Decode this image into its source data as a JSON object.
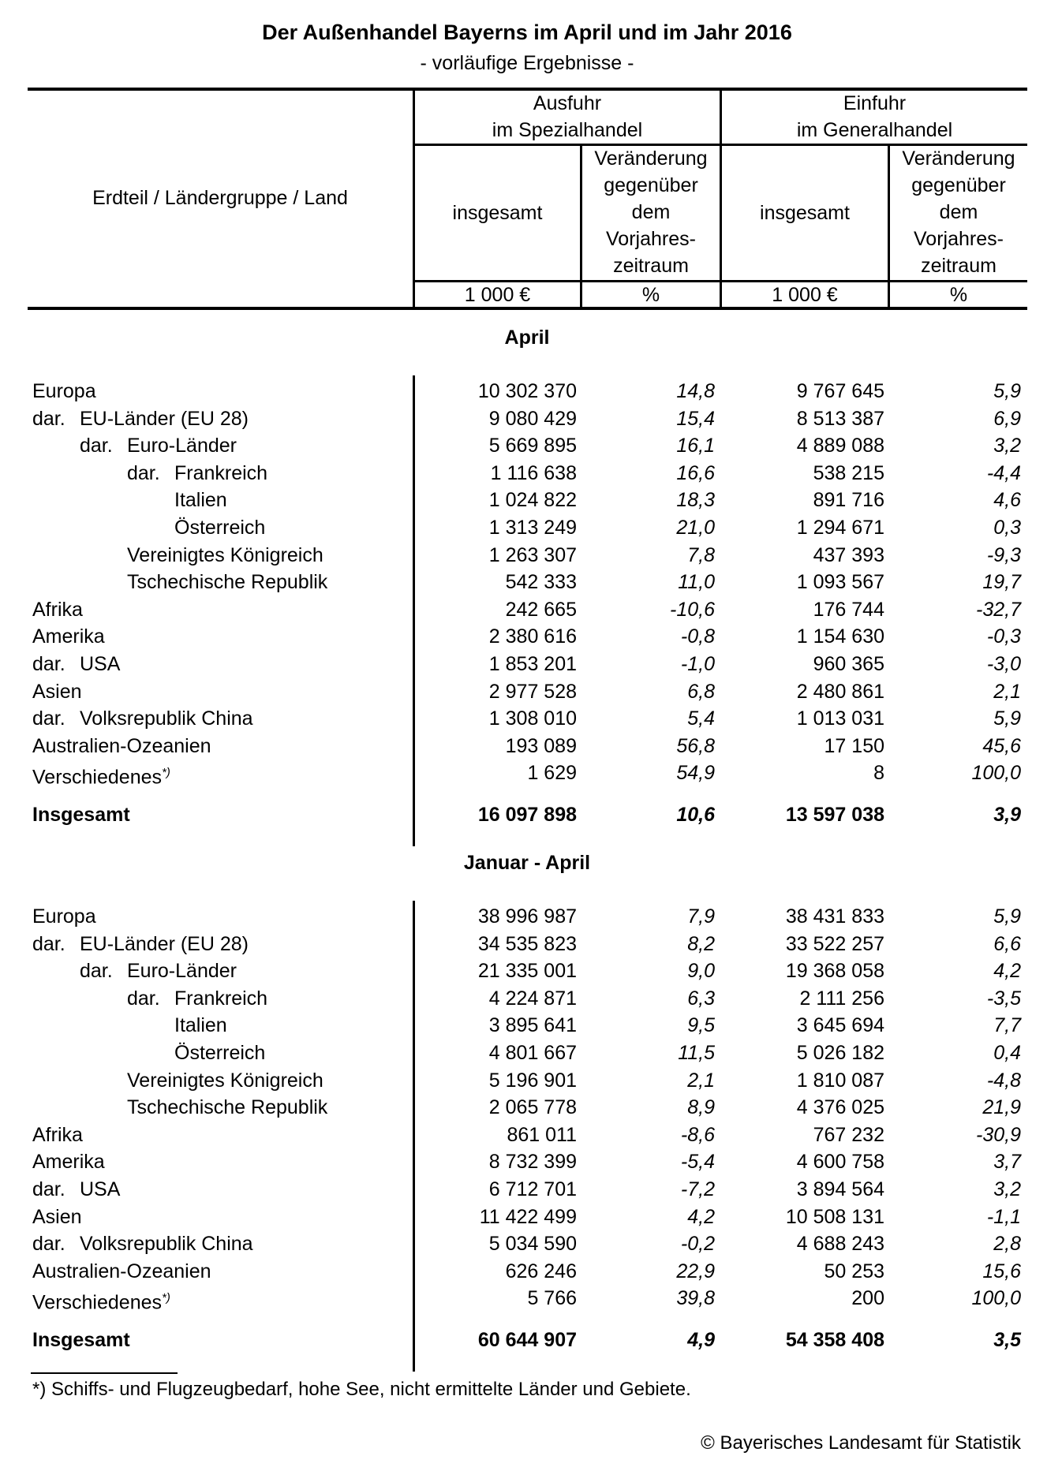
{
  "title": "Der Außenhandel Bayerns im April und im Jahr 2016",
  "subtitle": "- vorläufige Ergebnisse -",
  "header": {
    "stub": "Erdteil / Ländergruppe / Land",
    "export_group": [
      "Ausfuhr",
      "im Spezialhandel"
    ],
    "import_group": [
      "Einfuhr",
      "im Generalhandel"
    ],
    "total_label": "insgesamt",
    "change_label": [
      "Veränderung",
      "gegenüber",
      "dem",
      "Vorjahres-",
      "zeitraum"
    ],
    "unit_value": "1 000 €",
    "unit_pct": "%"
  },
  "sections": [
    {
      "title": "April",
      "rows": [
        {
          "prefix": "",
          "label": "Europa",
          "level": 0,
          "export": "10 302 370",
          "export_pct": "14,8",
          "import": "9 767 645",
          "import_pct": "5,9"
        },
        {
          "prefix": "dar.",
          "label": "EU-Länder (EU 28)",
          "level": 1,
          "export": "9 080 429",
          "export_pct": "15,4",
          "import": "8 513 387",
          "import_pct": "6,9"
        },
        {
          "prefix": "dar.",
          "label": "Euro-Länder",
          "level": 2,
          "export": "5 669 895",
          "export_pct": "16,1",
          "import": "4 889 088",
          "import_pct": "3,2"
        },
        {
          "prefix": "dar.",
          "label": "Frankreich",
          "level": 3,
          "export": "1 116 638",
          "export_pct": "16,6",
          "import": "538 215",
          "import_pct": "-4,4"
        },
        {
          "prefix": "",
          "label": "Italien",
          "level": 3,
          "export": "1 024 822",
          "export_pct": "18,3",
          "import": "891 716",
          "import_pct": "4,6"
        },
        {
          "prefix": "",
          "label": "Österreich",
          "level": 3,
          "export": "1 313 249",
          "export_pct": "21,0",
          "import": "1 294 671",
          "import_pct": "0,3"
        },
        {
          "prefix": "",
          "label": "Vereinigtes Königreich",
          "level": 2,
          "export": "1 263 307",
          "export_pct": "7,8",
          "import": "437 393",
          "import_pct": "-9,3"
        },
        {
          "prefix": "",
          "label": "Tschechische Republik",
          "level": 2,
          "export": "542 333",
          "export_pct": "11,0",
          "import": "1 093 567",
          "import_pct": "19,7"
        },
        {
          "prefix": "",
          "label": "Afrika",
          "level": 0,
          "export": "242 665",
          "export_pct": "-10,6",
          "import": "176 744",
          "import_pct": "-32,7"
        },
        {
          "prefix": "",
          "label": "Amerika",
          "level": 0,
          "export": "2 380 616",
          "export_pct": "-0,8",
          "import": "1 154 630",
          "import_pct": "-0,3"
        },
        {
          "prefix": "dar.",
          "label": "USA",
          "level": 1,
          "export": "1 853 201",
          "export_pct": "-1,0",
          "import": "960 365",
          "import_pct": "-3,0"
        },
        {
          "prefix": "",
          "label": "Asien",
          "level": 0,
          "export": "2 977 528",
          "export_pct": "6,8",
          "import": "2 480 861",
          "import_pct": "2,1"
        },
        {
          "prefix": "dar.",
          "label": "Volksrepublik China",
          "level": 1,
          "export": "1 308 010",
          "export_pct": "5,4",
          "import": "1 013 031",
          "import_pct": "5,9"
        },
        {
          "prefix": "",
          "label": "Australien-Ozeanien",
          "level": 0,
          "export": "193 089",
          "export_pct": "56,8",
          "import": "17 150",
          "import_pct": "45,6"
        },
        {
          "prefix": "",
          "label": "Verschiedenes",
          "note": "*)",
          "level": 0,
          "export": "1 629",
          "export_pct": "54,9",
          "import": "8",
          "import_pct": "100,0"
        }
      ],
      "total": {
        "label": "Insgesamt",
        "export": "16 097 898",
        "export_pct": "10,6",
        "import": "13 597 038",
        "import_pct": "3,9"
      }
    },
    {
      "title": "Januar - April",
      "rows": [
        {
          "prefix": "",
          "label": "Europa",
          "level": 0,
          "export": "38 996 987",
          "export_pct": "7,9",
          "import": "38 431 833",
          "import_pct": "5,9"
        },
        {
          "prefix": "dar.",
          "label": "EU-Länder (EU 28)",
          "level": 1,
          "export": "34 535 823",
          "export_pct": "8,2",
          "import": "33 522 257",
          "import_pct": "6,6"
        },
        {
          "prefix": "dar.",
          "label": "Euro-Länder",
          "level": 2,
          "export": "21 335 001",
          "export_pct": "9,0",
          "import": "19 368 058",
          "import_pct": "4,2"
        },
        {
          "prefix": "dar.",
          "label": "Frankreich",
          "level": 3,
          "export": "4 224 871",
          "export_pct": "6,3",
          "import": "2 111 256",
          "import_pct": "-3,5"
        },
        {
          "prefix": "",
          "label": "Italien",
          "level": 3,
          "export": "3 895 641",
          "export_pct": "9,5",
          "import": "3 645 694",
          "import_pct": "7,7"
        },
        {
          "prefix": "",
          "label": "Österreich",
          "level": 3,
          "export": "4 801 667",
          "export_pct": "11,5",
          "import": "5 026 182",
          "import_pct": "0,4"
        },
        {
          "prefix": "",
          "label": "Vereinigtes Königreich",
          "level": 2,
          "export": "5 196 901",
          "export_pct": "2,1",
          "import": "1 810 087",
          "import_pct": "-4,8"
        },
        {
          "prefix": "",
          "label": "Tschechische Republik",
          "level": 2,
          "export": "2 065 778",
          "export_pct": "8,9",
          "import": "4 376 025",
          "import_pct": "21,9"
        },
        {
          "prefix": "",
          "label": "Afrika",
          "level": 0,
          "export": "861 011",
          "export_pct": "-8,6",
          "import": "767 232",
          "import_pct": "-30,9"
        },
        {
          "prefix": "",
          "label": "Amerika",
          "level": 0,
          "export": "8 732 399",
          "export_pct": "-5,4",
          "import": "4 600 758",
          "import_pct": "3,7"
        },
        {
          "prefix": "dar.",
          "label": "USA",
          "level": 1,
          "export": "6 712 701",
          "export_pct": "-7,2",
          "import": "3 894 564",
          "import_pct": "3,2"
        },
        {
          "prefix": "",
          "label": "Asien",
          "level": 0,
          "export": "11 422 499",
          "export_pct": "4,2",
          "import": "10 508 131",
          "import_pct": "-1,1"
        },
        {
          "prefix": "dar.",
          "label": "Volksrepublik China",
          "level": 1,
          "export": "5 034 590",
          "export_pct": "-0,2",
          "import": "4 688 243",
          "import_pct": "2,8"
        },
        {
          "prefix": "",
          "label": "Australien-Ozeanien",
          "level": 0,
          "export": "626 246",
          "export_pct": "22,9",
          "import": "50 253",
          "import_pct": "15,6"
        },
        {
          "prefix": "",
          "label": "Verschiedenes",
          "note": "*)",
          "level": 0,
          "export": "5 766",
          "export_pct": "39,8",
          "import": "200",
          "import_pct": "100,0"
        }
      ],
      "total": {
        "label": "Insgesamt",
        "export": "60 644 907",
        "export_pct": "4,9",
        "import": "54 358 408",
        "import_pct": "3,5"
      }
    }
  ],
  "footnote": "*) Schiffs- und Flugzeugbedarf, hohe See, nicht ermittelte Länder und Gebiete.",
  "copyright": "© Bayerisches Landesamt für Statistik"
}
